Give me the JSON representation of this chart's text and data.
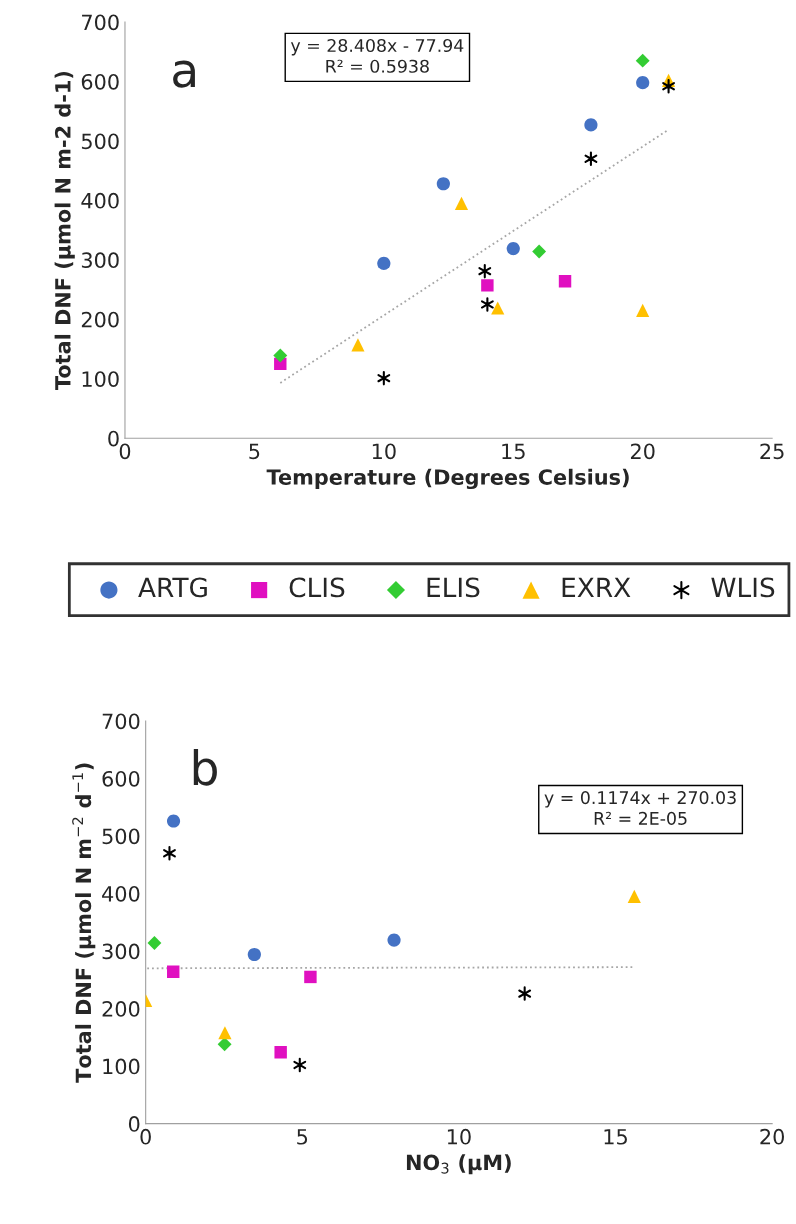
{
  "chart_data": [
    {
      "type": "scatter",
      "xlabel": "Temperature (Degrees Celsius)",
      "ylabel": "Total DNF (µmol N m-2 d-1)",
      "annotations": [
        "a",
        "y = 28.408x - 77.94\nR² = 0.5938"
      ],
      "xlim": [
        0,
        25
      ],
      "xticks": [
        0,
        5,
        10,
        15,
        20,
        25
      ],
      "ylim": [
        0,
        700
      ],
      "yticks": [
        0,
        100,
        200,
        300,
        400,
        500,
        600,
        700
      ],
      "grid": false,
      "legend": "bottom",
      "series": [
        {
          "name": "ARTG",
          "color": "#4472c4",
          "marker": "circle",
          "x": [
            10,
            12.3,
            15,
            18,
            20
          ],
          "values": [
            294,
            428,
            319,
            527,
            598
          ]
        },
        {
          "name": "CLIS",
          "color": "#e010c0",
          "marker": "square",
          "x": [
            6,
            14,
            17
          ],
          "values": [
            125,
            257,
            264
          ]
        },
        {
          "name": "ELIS",
          "color": "#33cc33",
          "marker": "diamond",
          "x": [
            6,
            16,
            20
          ],
          "values": [
            139,
            314,
            635
          ]
        },
        {
          "name": "EXRX",
          "color": "#ffc000",
          "marker": "triangle",
          "x": [
            9,
            13,
            14.4,
            20,
            21
          ],
          "values": [
            157,
            395,
            219,
            215,
            602
          ]
        },
        {
          "name": "WLIS",
          "color": "#000000",
          "marker": "cross",
          "x": [
            10,
            13.9,
            14,
            18,
            21
          ],
          "values": [
            101,
            281,
            225,
            470,
            592
          ]
        },
        {
          "type": "line",
          "color": "#a6a6a6",
          "line_style": "dotted",
          "marker": "none",
          "x": [
            6,
            21
          ],
          "values": [
            93,
            519
          ]
        }
      ]
    },
    {
      "type": "scatter",
      "xlabel": "NO$_{3}$ (µM)",
      "ylabel": "Total DNF (µmol N m$^{−2}$ d$^{−1}$)",
      "annotations": [
        "b",
        "y = 0.1174x + 270.03\nR² = 2E-05"
      ],
      "xlim": [
        0,
        20
      ],
      "xticks": [
        0,
        5,
        10,
        15,
        20
      ],
      "ylim": [
        0,
        700
      ],
      "yticks": [
        0,
        100,
        200,
        300,
        400,
        500,
        600,
        700
      ],
      "grid": false,
      "series": [
        {
          "color": "#4472c4",
          "marker": "circle",
          "x": [
            0.89,
            3.47,
            7.93
          ],
          "values": [
            526,
            294,
            319
          ]
        },
        {
          "color": "#e010c0",
          "marker": "square",
          "x": [
            0.88,
            5.26,
            4.31
          ],
          "values": [
            264,
            255,
            124
          ]
        },
        {
          "color": "#33cc33",
          "marker": "diamond",
          "x": [
            0.28,
            2.52
          ],
          "values": [
            314,
            138
          ]
        },
        {
          "color": "#ffc000",
          "marker": "triangle",
          "x": [
            0,
            2.53,
            15.6
          ],
          "values": [
            214,
            158,
            395
          ]
        },
        {
          "color": "#000000",
          "marker": "cross",
          "x": [
            0.76,
            4.92,
            12.1
          ],
          "values": [
            470,
            102,
            226
          ]
        },
        {
          "type": "line",
          "color": "#a6a6a6",
          "line_style": "dotted",
          "marker": "none",
          "x": [
            0.05,
            15.6
          ],
          "values": [
            270,
            272
          ]
        }
      ]
    }
  ]
}
